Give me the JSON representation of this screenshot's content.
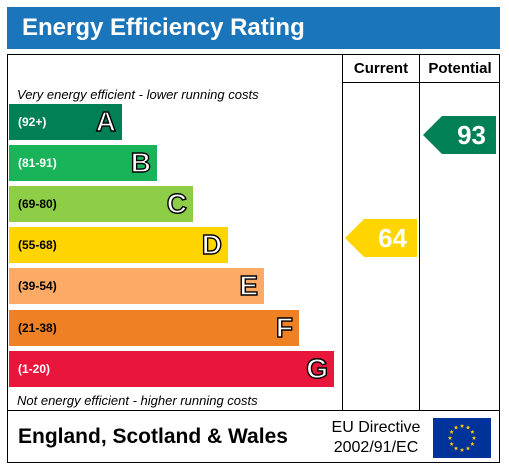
{
  "title": "Energy Efficiency Rating",
  "columns": {
    "current": "Current",
    "potential": "Potential"
  },
  "top_note": "Very energy efficient - lower running costs",
  "bottom_note": "Not energy efficient - higher running costs",
  "bands": [
    {
      "range": "(92+)",
      "letter": "A",
      "color": "#008054"
    },
    {
      "range": "(81-91)",
      "letter": "B",
      "color": "#19b459"
    },
    {
      "range": "(69-80)",
      "letter": "C",
      "color": "#8dce46"
    },
    {
      "range": "(55-68)",
      "letter": "D",
      "color": "#ffd500"
    },
    {
      "range": "(39-54)",
      "letter": "E",
      "color": "#fcaa65"
    },
    {
      "range": "(21-38)",
      "letter": "F",
      "color": "#ef8023"
    },
    {
      "range": "(1-20)",
      "letter": "G",
      "color": "#e9153b"
    }
  ],
  "current_rating": {
    "value": "64",
    "color": "#ffd500"
  },
  "potential_rating": {
    "value": "93",
    "color": "#008054"
  },
  "footer": {
    "region": "England, Scotland & Wales",
    "directive_line1": "EU Directive",
    "directive_line2": "2002/91/EC",
    "flag_colors": {
      "background": "#003399",
      "stars": "#ffcc00"
    }
  }
}
